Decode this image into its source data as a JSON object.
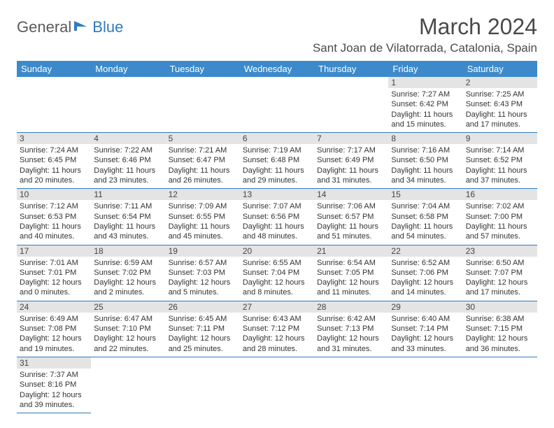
{
  "logo": {
    "part1": "General",
    "part2": "Blue"
  },
  "title": "March 2024",
  "location": "Sant Joan de Vilatorrada, Catalonia, Spain",
  "columns": [
    "Sunday",
    "Monday",
    "Tuesday",
    "Wednesday",
    "Thursday",
    "Friday",
    "Saturday"
  ],
  "colors": {
    "header_bg": "#3c8acb",
    "header_text": "#ffffff",
    "day_bar_bg": "#e4e4e4",
    "cell_border": "#2f7bbf",
    "logo_gray": "#5a5a5a",
    "logo_blue": "#2f7bbf"
  },
  "weeks": [
    [
      null,
      null,
      null,
      null,
      null,
      {
        "n": "1",
        "sr": "7:27 AM",
        "ss": "6:42 PM",
        "dl": "11 hours and 15 minutes."
      },
      {
        "n": "2",
        "sr": "7:25 AM",
        "ss": "6:43 PM",
        "dl": "11 hours and 17 minutes."
      }
    ],
    [
      {
        "n": "3",
        "sr": "7:24 AM",
        "ss": "6:45 PM",
        "dl": "11 hours and 20 minutes."
      },
      {
        "n": "4",
        "sr": "7:22 AM",
        "ss": "6:46 PM",
        "dl": "11 hours and 23 minutes."
      },
      {
        "n": "5",
        "sr": "7:21 AM",
        "ss": "6:47 PM",
        "dl": "11 hours and 26 minutes."
      },
      {
        "n": "6",
        "sr": "7:19 AM",
        "ss": "6:48 PM",
        "dl": "11 hours and 29 minutes."
      },
      {
        "n": "7",
        "sr": "7:17 AM",
        "ss": "6:49 PM",
        "dl": "11 hours and 31 minutes."
      },
      {
        "n": "8",
        "sr": "7:16 AM",
        "ss": "6:50 PM",
        "dl": "11 hours and 34 minutes."
      },
      {
        "n": "9",
        "sr": "7:14 AM",
        "ss": "6:52 PM",
        "dl": "11 hours and 37 minutes."
      }
    ],
    [
      {
        "n": "10",
        "sr": "7:12 AM",
        "ss": "6:53 PM",
        "dl": "11 hours and 40 minutes."
      },
      {
        "n": "11",
        "sr": "7:11 AM",
        "ss": "6:54 PM",
        "dl": "11 hours and 43 minutes."
      },
      {
        "n": "12",
        "sr": "7:09 AM",
        "ss": "6:55 PM",
        "dl": "11 hours and 45 minutes."
      },
      {
        "n": "13",
        "sr": "7:07 AM",
        "ss": "6:56 PM",
        "dl": "11 hours and 48 minutes."
      },
      {
        "n": "14",
        "sr": "7:06 AM",
        "ss": "6:57 PM",
        "dl": "11 hours and 51 minutes."
      },
      {
        "n": "15",
        "sr": "7:04 AM",
        "ss": "6:58 PM",
        "dl": "11 hours and 54 minutes."
      },
      {
        "n": "16",
        "sr": "7:02 AM",
        "ss": "7:00 PM",
        "dl": "11 hours and 57 minutes."
      }
    ],
    [
      {
        "n": "17",
        "sr": "7:01 AM",
        "ss": "7:01 PM",
        "dl": "12 hours and 0 minutes."
      },
      {
        "n": "18",
        "sr": "6:59 AM",
        "ss": "7:02 PM",
        "dl": "12 hours and 2 minutes."
      },
      {
        "n": "19",
        "sr": "6:57 AM",
        "ss": "7:03 PM",
        "dl": "12 hours and 5 minutes."
      },
      {
        "n": "20",
        "sr": "6:55 AM",
        "ss": "7:04 PM",
        "dl": "12 hours and 8 minutes."
      },
      {
        "n": "21",
        "sr": "6:54 AM",
        "ss": "7:05 PM",
        "dl": "12 hours and 11 minutes."
      },
      {
        "n": "22",
        "sr": "6:52 AM",
        "ss": "7:06 PM",
        "dl": "12 hours and 14 minutes."
      },
      {
        "n": "23",
        "sr": "6:50 AM",
        "ss": "7:07 PM",
        "dl": "12 hours and 17 minutes."
      }
    ],
    [
      {
        "n": "24",
        "sr": "6:49 AM",
        "ss": "7:08 PM",
        "dl": "12 hours and 19 minutes."
      },
      {
        "n": "25",
        "sr": "6:47 AM",
        "ss": "7:10 PM",
        "dl": "12 hours and 22 minutes."
      },
      {
        "n": "26",
        "sr": "6:45 AM",
        "ss": "7:11 PM",
        "dl": "12 hours and 25 minutes."
      },
      {
        "n": "27",
        "sr": "6:43 AM",
        "ss": "7:12 PM",
        "dl": "12 hours and 28 minutes."
      },
      {
        "n": "28",
        "sr": "6:42 AM",
        "ss": "7:13 PM",
        "dl": "12 hours and 31 minutes."
      },
      {
        "n": "29",
        "sr": "6:40 AM",
        "ss": "7:14 PM",
        "dl": "12 hours and 33 minutes."
      },
      {
        "n": "30",
        "sr": "6:38 AM",
        "ss": "7:15 PM",
        "dl": "12 hours and 36 minutes."
      }
    ],
    [
      {
        "n": "31",
        "sr": "7:37 AM",
        "ss": "8:16 PM",
        "dl": "12 hours and 39 minutes."
      },
      null,
      null,
      null,
      null,
      null,
      null
    ]
  ],
  "labels": {
    "sunrise": "Sunrise:",
    "sunset": "Sunset:",
    "daylight": "Daylight:"
  }
}
